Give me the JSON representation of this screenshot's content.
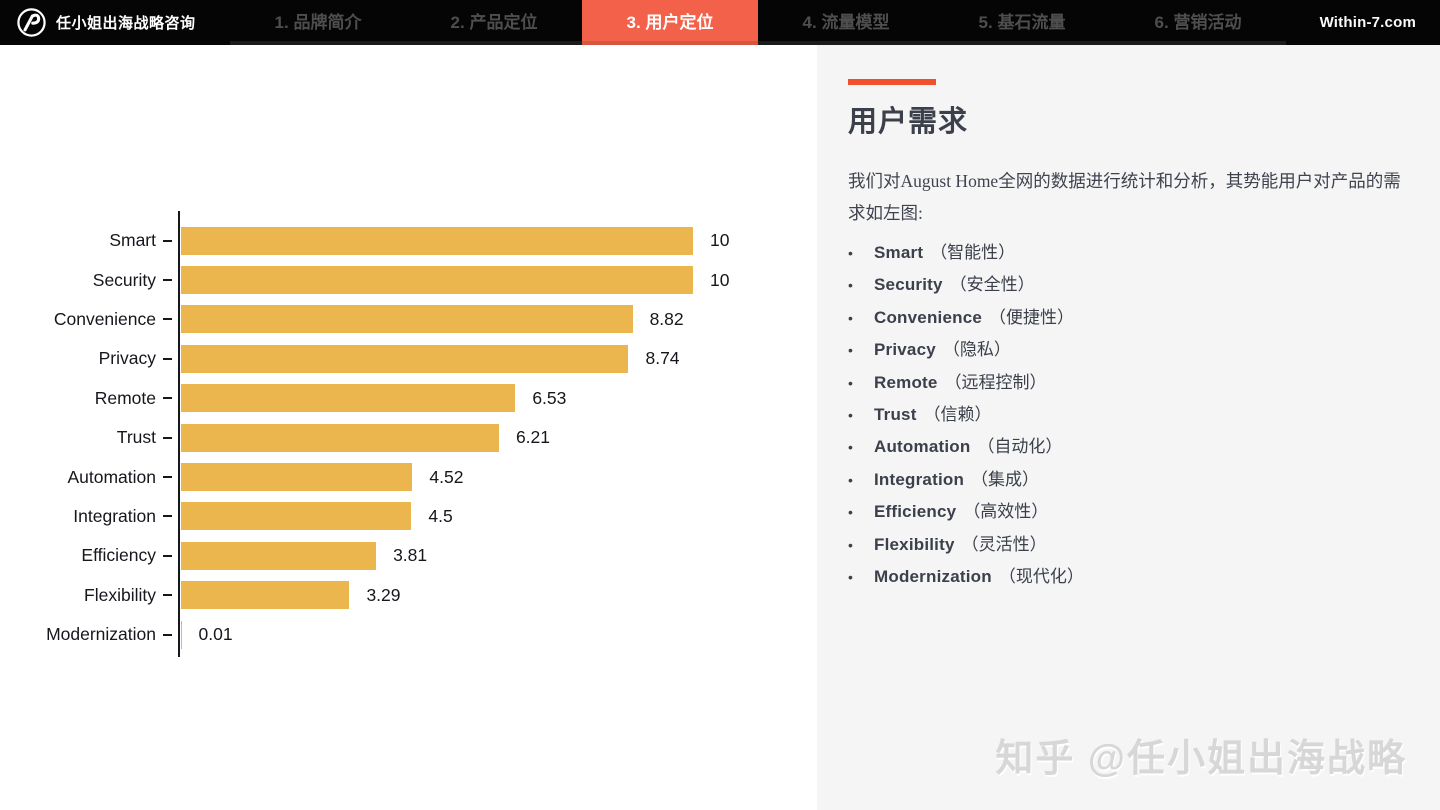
{
  "navbar": {
    "brand": "任小姐出海战略咨询",
    "logo": "brand-circle-mark",
    "tabs": [
      {
        "label": "1. 品牌简介",
        "active": false
      },
      {
        "label": "2. 产品定位",
        "active": false
      },
      {
        "label": "3. 用户定位",
        "active": true
      },
      {
        "label": "4. 流量模型",
        "active": false
      },
      {
        "label": "5. 基石流量",
        "active": false
      },
      {
        "label": "6. 营销活动",
        "active": false
      }
    ],
    "site": "Within-7.com",
    "active_tab_color": "#f4614a",
    "bar_background": "#050505"
  },
  "chart_data": {
    "type": "bar",
    "orientation": "horizontal",
    "title": "",
    "xlabel": "",
    "ylabel": "",
    "categories": [
      "Smart",
      "Security",
      "Convenience",
      "Privacy",
      "Remote",
      "Trust",
      "Automation",
      "Integration",
      "Efficiency",
      "Flexibility",
      "Modernization"
    ],
    "values": [
      10,
      10,
      8.82,
      8.74,
      6.53,
      6.21,
      4.52,
      4.5,
      3.81,
      3.29,
      0.01
    ],
    "value_labels": [
      "10",
      "10",
      "8.82",
      "8.74",
      "6.53",
      "6.21",
      "4.52",
      "4.5",
      "3.81",
      "3.29",
      "0.01"
    ],
    "xlim": [
      0,
      10
    ],
    "grid": false,
    "legend": false,
    "bar_color": "#ecb64f",
    "axis_color": "#15171c"
  },
  "panel": {
    "accent_color": "#f0502e",
    "title": "用户需求",
    "intro": "我们对August Home全网的数据进行统计和分析，其势能用户对产品的需求如左图:",
    "bullet_icon": "•",
    "bullets": [
      {
        "term": "Smart",
        "annotation": "（智能性）"
      },
      {
        "term": "Security",
        "annotation": "（安全性）"
      },
      {
        "term": "Convenience",
        "annotation": "（便捷性）"
      },
      {
        "term": "Privacy",
        "annotation": "（隐私）"
      },
      {
        "term": "Remote",
        "annotation": "（远程控制）"
      },
      {
        "term": "Trust",
        "annotation": "（信赖）"
      },
      {
        "term": "Automation",
        "annotation": "（自动化）"
      },
      {
        "term": "Integration",
        "annotation": "（集成）"
      },
      {
        "term": "Efficiency",
        "annotation": "（高效性）"
      },
      {
        "term": "Flexibility",
        "annotation": "（灵活性）"
      },
      {
        "term": "Modernization",
        "annotation": "（现代化）"
      }
    ]
  },
  "watermark": "知乎 @任小姐出海战略"
}
